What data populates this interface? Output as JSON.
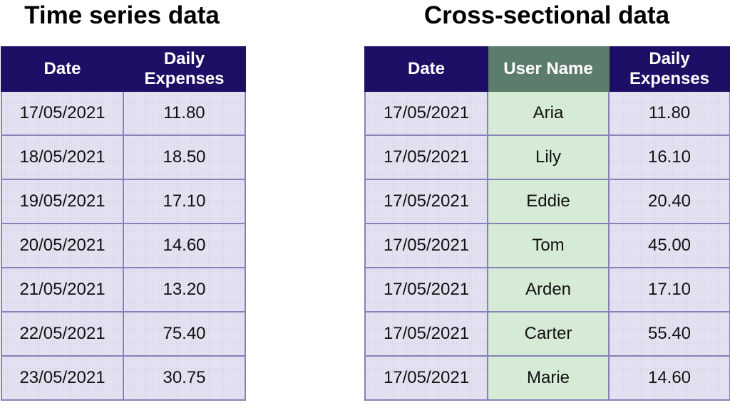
{
  "time_series": {
    "title": "Time series data",
    "headers": [
      "Date",
      "Daily\nExpenses"
    ],
    "rows": [
      [
        "17/05/2021",
        "11.80"
      ],
      [
        "18/05/2021",
        "18.50"
      ],
      [
        "19/05/2021",
        "17.10"
      ],
      [
        "20/05/2021",
        "14.60"
      ],
      [
        "21/05/2021",
        "13.20"
      ],
      [
        "22/05/2021",
        "75.40"
      ],
      [
        "23/05/2021",
        "30.75"
      ]
    ]
  },
  "cross_sectional": {
    "title": "Cross-sectional data",
    "headers": [
      "Date",
      "User Name",
      "Daily\nExpenses"
    ],
    "rows": [
      [
        "17/05/2021",
        "Aria",
        "11.80"
      ],
      [
        "17/05/2021",
        "Lily",
        "16.10"
      ],
      [
        "17/05/2021",
        "Eddie",
        "20.40"
      ],
      [
        "17/05/2021",
        "Tom",
        "45.00"
      ],
      [
        "17/05/2021",
        "Arden",
        "17.10"
      ],
      [
        "17/05/2021",
        "Carter",
        "55.40"
      ],
      [
        "17/05/2021",
        "Marie",
        "14.60"
      ]
    ]
  },
  "colors": {
    "header_bg": "#1f0e66",
    "user_header_bg": "#5c7d6c",
    "cell_bg": "#e4e3f2",
    "user_cell_bg": "#d6ebd6",
    "border": "#8880b8"
  }
}
